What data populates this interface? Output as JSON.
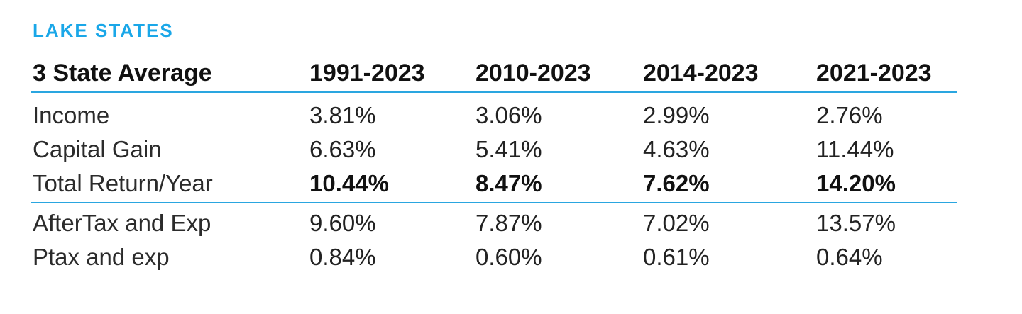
{
  "title": "LAKE STATES",
  "chart_data": {
    "type": "table",
    "title": "LAKE STATES",
    "columns": [
      "3 State Average",
      "1991-2023",
      "2010-2023",
      "2014-2023",
      "2021-2023"
    ],
    "rows": [
      {
        "label": "Income",
        "values": [
          "3.81%",
          "3.06%",
          "2.99%",
          "2.76%"
        ],
        "bold": false
      },
      {
        "label": "Capital Gain",
        "values": [
          "6.63%",
          "5.41%",
          "4.63%",
          "11.44%"
        ],
        "bold": false
      },
      {
        "label": "Total Return/Year",
        "values": [
          "10.44%",
          "8.47%",
          "7.62%",
          "14.20%"
        ],
        "bold": true
      },
      {
        "label": "AfterTax and Exp",
        "values": [
          "9.60%",
          "7.87%",
          "7.02%",
          "13.57%"
        ],
        "bold": false
      },
      {
        "label": "Ptax and exp",
        "values": [
          "0.84%",
          "0.60%",
          "0.61%",
          "0.64%"
        ],
        "bold": false
      }
    ]
  },
  "colors": {
    "title": "#1aa7e8",
    "rule": "#2aa6e0",
    "text": "#222222"
  }
}
